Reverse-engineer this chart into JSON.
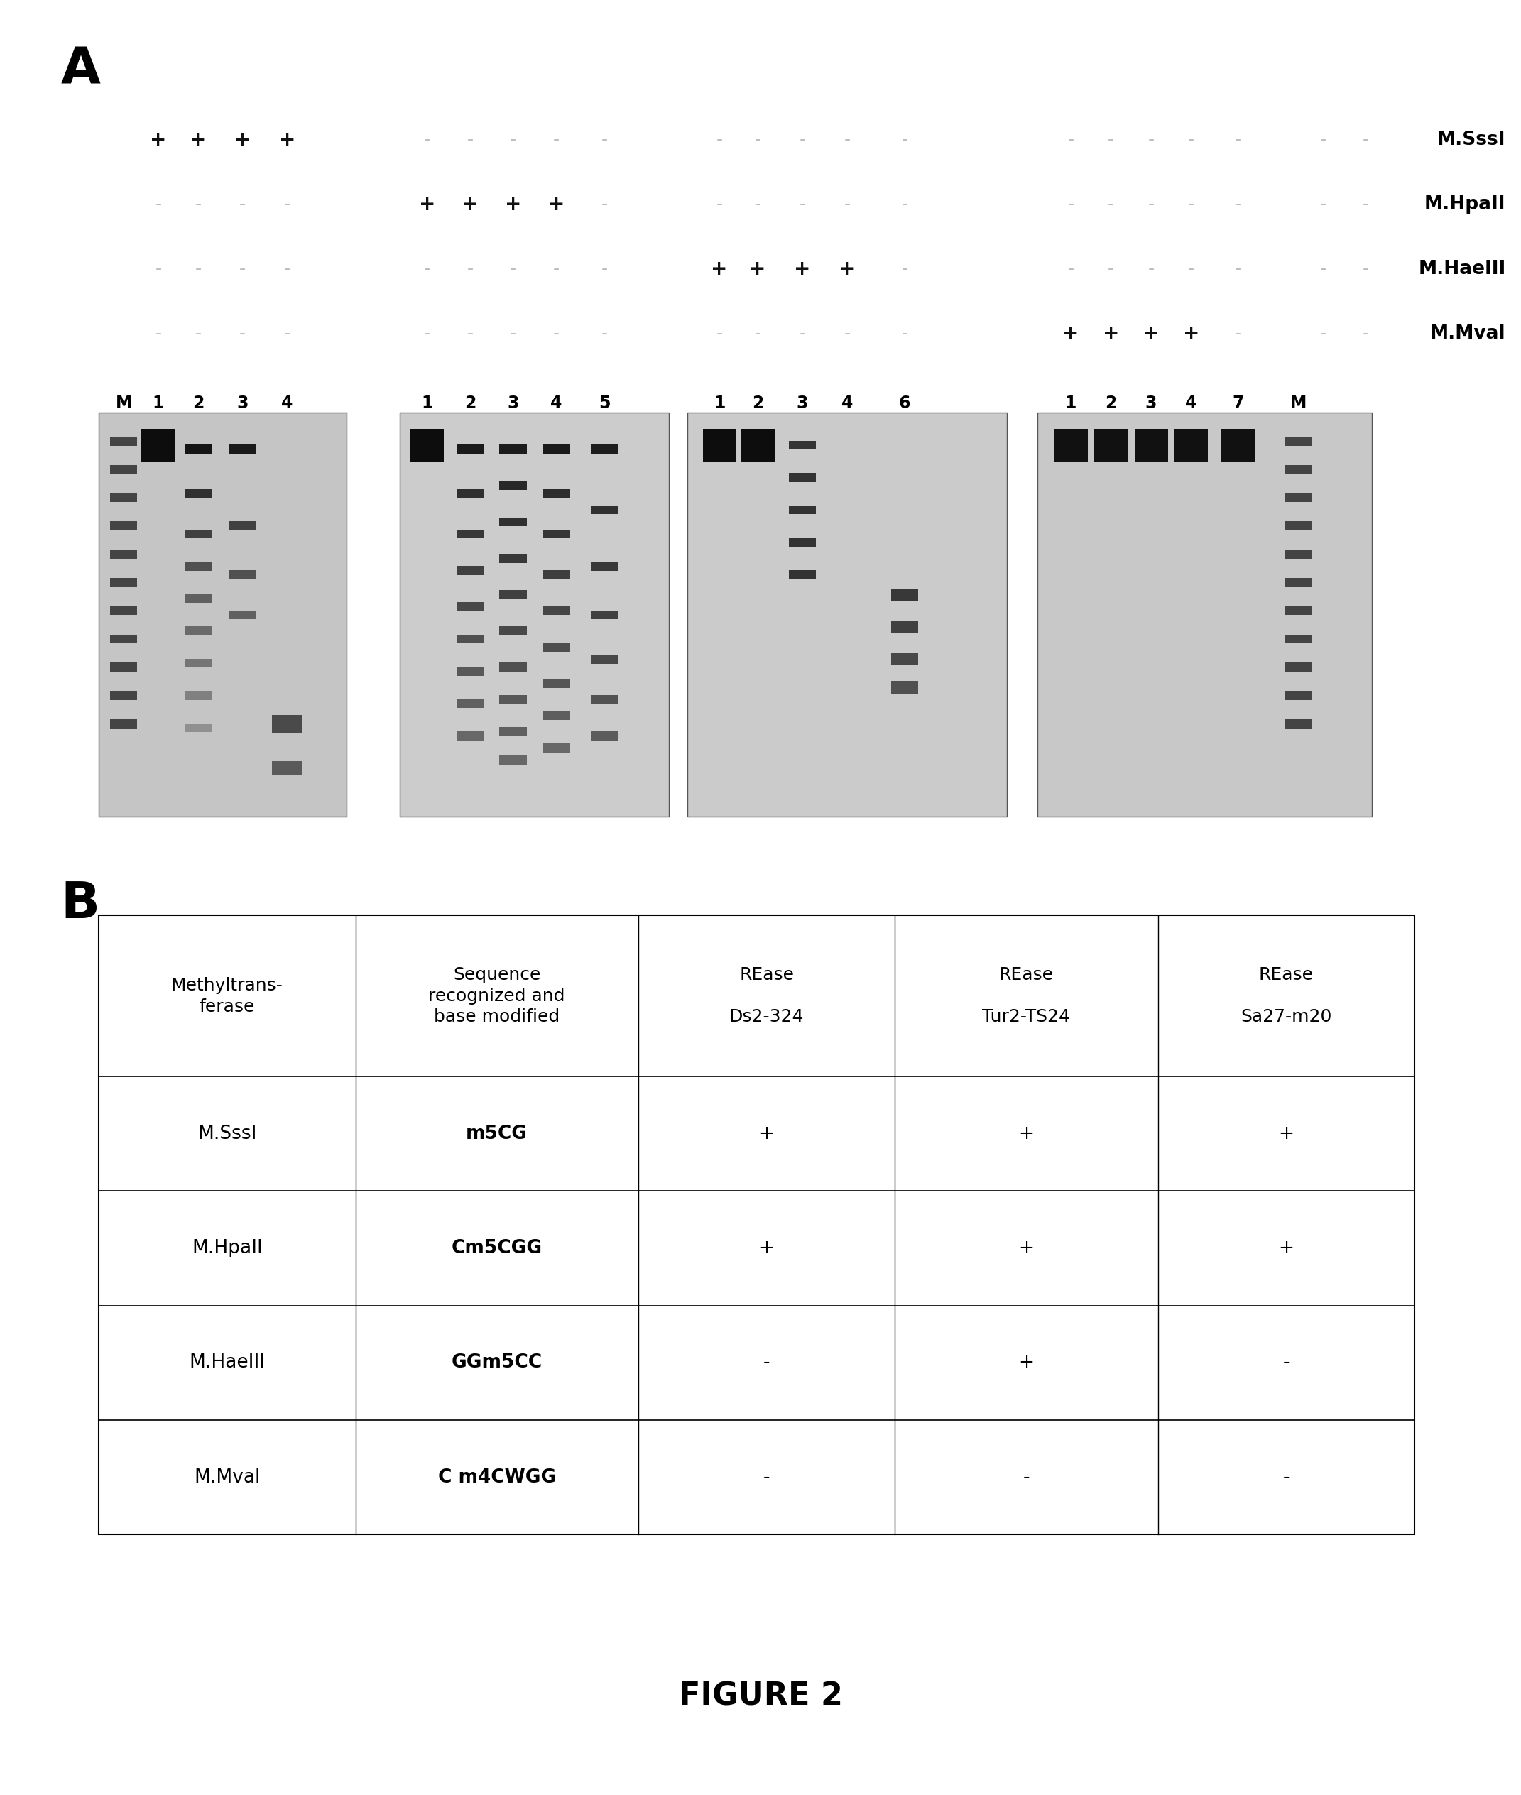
{
  "panel_A_label": "A",
  "panel_B_label": "B",
  "figure_caption": "FIGURE 2",
  "row_labels_right": [
    "M.SssI",
    "M.HpaII",
    "M.HaeIII",
    "M.Mval"
  ],
  "plus_minus_rows": [
    [
      "+",
      "+",
      "+",
      "+",
      "-",
      "-",
      "-",
      "-",
      "-",
      "-",
      "-",
      "-",
      "-",
      "-",
      "-",
      "-",
      "-",
      "-",
      "-",
      "-",
      "-"
    ],
    [
      "-",
      "-",
      "-",
      "-",
      "+",
      "+",
      "+",
      "+",
      "-",
      "-",
      "-",
      "-",
      "-",
      "-",
      "-",
      "-",
      "-",
      "-",
      "-",
      "-",
      "-"
    ],
    [
      "-",
      "-",
      "-",
      "-",
      "-",
      "-",
      "-",
      "-",
      "-",
      "+",
      "+",
      "+",
      "+",
      "-",
      "-",
      "-",
      "-",
      "-",
      "-",
      "-",
      "-"
    ],
    [
      "-",
      "-",
      "-",
      "-",
      "-",
      "-",
      "-",
      "-",
      "-",
      "-",
      "-",
      "-",
      "-",
      "-",
      "+",
      "+",
      "+",
      "+",
      "-",
      "-",
      "-"
    ]
  ],
  "background_color": "#ffffff",
  "text_color": "#000000",
  "plus_color": "#111111",
  "minus_color": "#bbbbbb",
  "gel_bg": "#c8c8c8",
  "table_rows": [
    [
      "M.SssI",
      "m5CG",
      "+",
      "+",
      "+"
    ],
    [
      "M.HpaII",
      "Cm5CGG",
      "+",
      "+",
      "+"
    ],
    [
      "M.HaeIII",
      "GGm5CC",
      "-",
      "+",
      "-"
    ],
    [
      "M.Mval",
      "C m4CWGG",
      "-",
      "-",
      "-"
    ]
  ]
}
